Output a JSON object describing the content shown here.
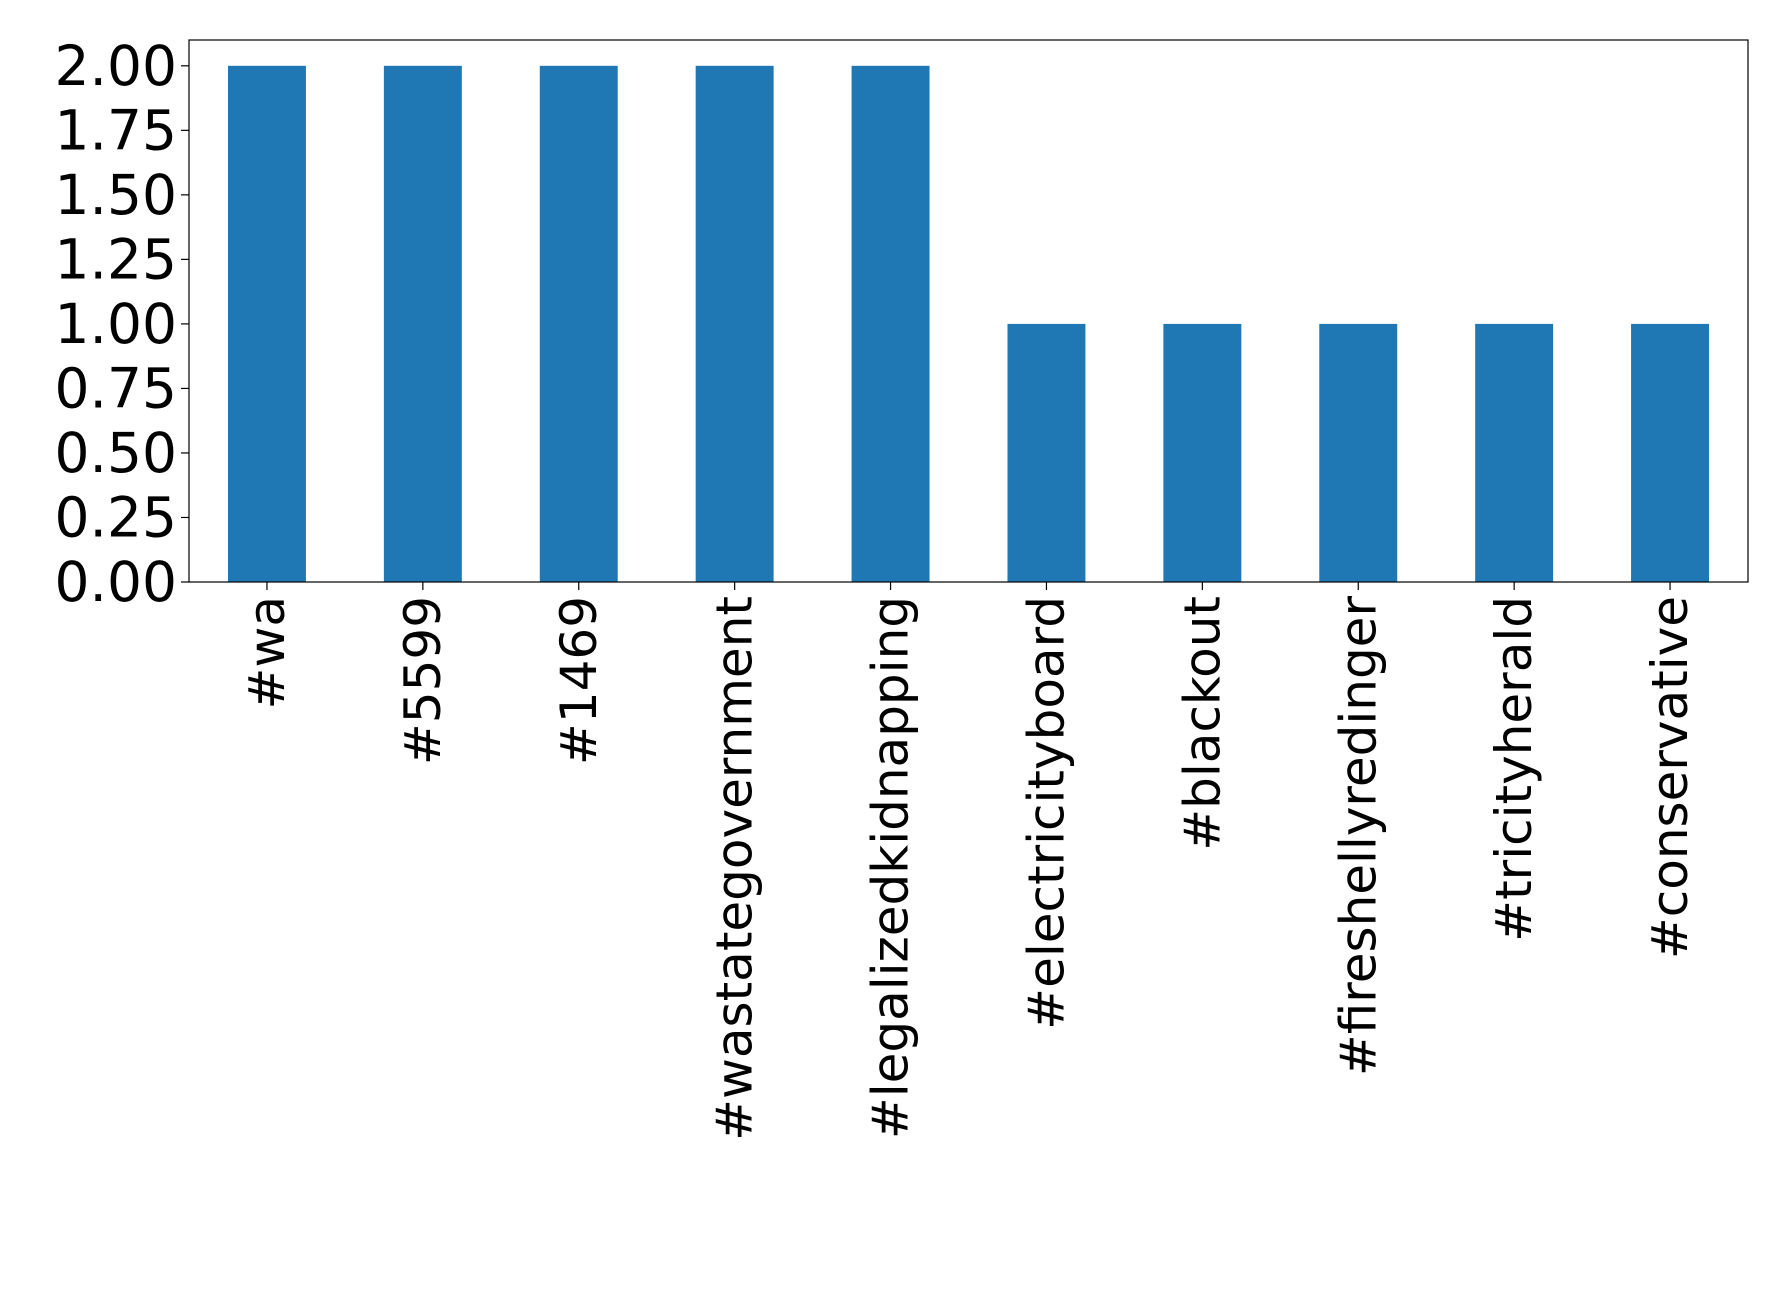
{
  "chart_data": {
    "type": "bar",
    "title": "",
    "xlabel": "",
    "ylabel": "",
    "categories": [
      "#wa",
      "#5599",
      "#1469",
      "#wastategovernment",
      "#legalizedkidnapping",
      "#electricityboard",
      "#blackout",
      "#fireshellyredinger",
      "#tricityherald",
      "#conservative"
    ],
    "values": [
      2,
      2,
      2,
      2,
      2,
      1,
      1,
      1,
      1,
      1
    ],
    "ylim": [
      0,
      2.1
    ],
    "yticks": [
      "0.00",
      "0.25",
      "0.50",
      "0.75",
      "1.00",
      "1.25",
      "1.50",
      "1.75",
      "2.00"
    ],
    "grid": false,
    "legend": "none",
    "bar_color": "#1f77b4"
  }
}
